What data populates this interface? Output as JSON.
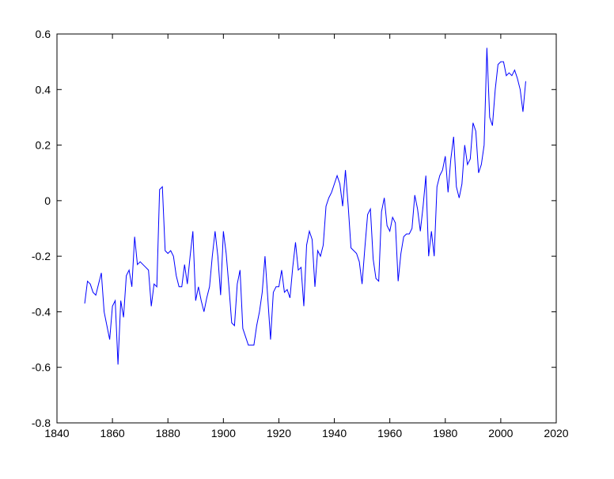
{
  "chart_data": {
    "type": "line",
    "x": [
      1850,
      1851,
      1852,
      1853,
      1854,
      1855,
      1856,
      1857,
      1858,
      1859,
      1860,
      1861,
      1862,
      1863,
      1864,
      1865,
      1866,
      1867,
      1868,
      1869,
      1870,
      1871,
      1872,
      1873,
      1874,
      1875,
      1876,
      1877,
      1878,
      1879,
      1880,
      1881,
      1882,
      1883,
      1884,
      1885,
      1886,
      1887,
      1888,
      1889,
      1890,
      1891,
      1892,
      1893,
      1894,
      1895,
      1896,
      1897,
      1898,
      1899,
      1900,
      1901,
      1902,
      1903,
      1904,
      1905,
      1906,
      1907,
      1908,
      1909,
      1910,
      1911,
      1912,
      1913,
      1914,
      1915,
      1916,
      1917,
      1918,
      1919,
      1920,
      1921,
      1922,
      1923,
      1924,
      1925,
      1926,
      1927,
      1928,
      1929,
      1930,
      1931,
      1932,
      1933,
      1934,
      1935,
      1936,
      1937,
      1938,
      1939,
      1940,
      1941,
      1942,
      1943,
      1944,
      1945,
      1946,
      1947,
      1948,
      1949,
      1950,
      1951,
      1952,
      1953,
      1954,
      1955,
      1956,
      1957,
      1958,
      1959,
      1960,
      1961,
      1962,
      1963,
      1964,
      1965,
      1966,
      1967,
      1968,
      1969,
      1970,
      1971,
      1972,
      1973,
      1974,
      1975,
      1976,
      1977,
      1978,
      1979,
      1980,
      1981,
      1982,
      1983,
      1984,
      1985,
      1986,
      1987,
      1988,
      1989,
      1990,
      1991,
      1992,
      1993,
      1994,
      1995,
      1996,
      1997,
      1998,
      1999,
      2000,
      2001,
      2002,
      2003,
      2004,
      2005,
      2006,
      2007,
      2008,
      2009
    ],
    "series": [
      {
        "color": "#0000ff",
        "values": [
          -0.37,
          -0.29,
          -0.3,
          -0.33,
          -0.34,
          -0.3,
          -0.26,
          -0.4,
          -0.45,
          -0.5,
          -0.38,
          -0.36,
          -0.59,
          -0.36,
          -0.42,
          -0.27,
          -0.25,
          -0.31,
          -0.13,
          -0.23,
          -0.22,
          -0.23,
          -0.24,
          -0.25,
          -0.38,
          -0.3,
          -0.31,
          0.04,
          0.05,
          -0.18,
          -0.19,
          -0.18,
          -0.2,
          -0.27,
          -0.31,
          -0.31,
          -0.23,
          -0.3,
          -0.2,
          -0.11,
          -0.36,
          -0.31,
          -0.36,
          -0.4,
          -0.35,
          -0.31,
          -0.2,
          -0.11,
          -0.2,
          -0.34,
          -0.11,
          -0.19,
          -0.31,
          -0.44,
          -0.45,
          -0.3,
          -0.25,
          -0.46,
          -0.49,
          -0.52,
          -0.52,
          -0.52,
          -0.45,
          -0.4,
          -0.33,
          -0.2,
          -0.35,
          -0.5,
          -0.33,
          -0.31,
          -0.31,
          -0.25,
          -0.33,
          -0.32,
          -0.35,
          -0.24,
          -0.15,
          -0.25,
          -0.24,
          -0.38,
          -0.16,
          -0.11,
          -0.14,
          -0.31,
          -0.18,
          -0.2,
          -0.16,
          -0.02,
          0.01,
          0.03,
          0.06,
          0.09,
          0.06,
          -0.02,
          0.11,
          -0.02,
          -0.17,
          -0.18,
          -0.19,
          -0.22,
          -0.3,
          -0.17,
          -0.05,
          -0.03,
          -0.21,
          -0.28,
          -0.29,
          -0.04,
          0.01,
          -0.09,
          -0.11,
          -0.06,
          -0.08,
          -0.29,
          -0.19,
          -0.13,
          -0.12,
          -0.12,
          -0.1,
          0.02,
          -0.03,
          -0.11,
          -0.02,
          0.09,
          -0.2,
          -0.11,
          -0.2,
          0.05,
          0.09,
          0.11,
          0.16,
          0.03,
          0.15,
          0.23,
          0.05,
          0.01,
          0.06,
          0.2,
          0.13,
          0.15,
          0.28,
          0.25,
          0.1,
          0.13,
          0.2,
          0.55,
          0.3,
          0.27,
          0.4,
          0.49,
          0.5,
          0.5,
          0.45,
          0.46,
          0.45,
          0.47,
          0.44,
          0.4,
          0.32,
          0.43
        ]
      }
    ],
    "xlim": [
      1840,
      2020
    ],
    "xticks": [
      1840,
      1860,
      1880,
      1900,
      1920,
      1940,
      1960,
      1980,
      2000,
      2020
    ],
    "ylim": [
      -0.8,
      0.6
    ],
    "yticks": [
      -0.8,
      -0.6,
      -0.4,
      -0.2,
      0,
      0.2,
      0.4,
      0.6
    ],
    "grid": false
  }
}
